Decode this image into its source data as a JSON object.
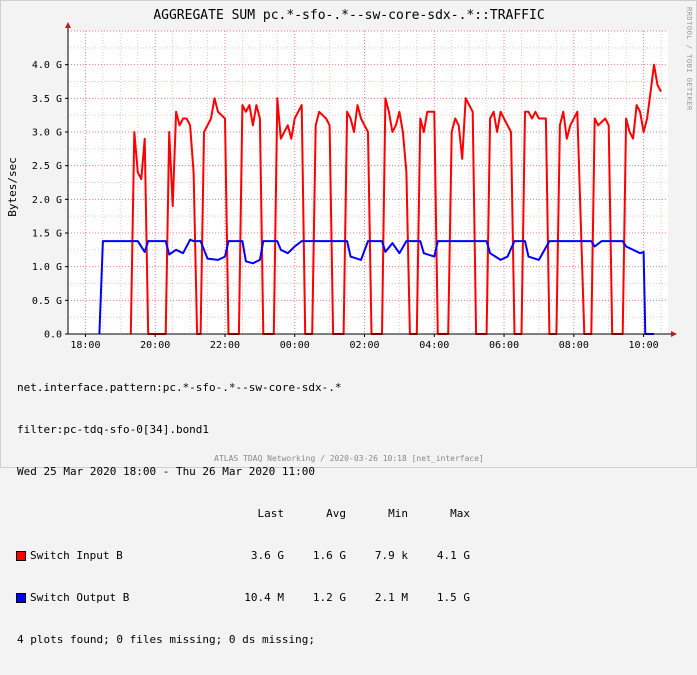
{
  "chart_data": {
    "type": "line",
    "title": "AGGREGATE SUM pc.*-sfo-.*--sw-core-sdx-.*::TRAFFIC",
    "ylabel": "Bytes/sec",
    "xlabel": "",
    "ylim": [
      0,
      4.5
    ],
    "xlim": [
      -0.5,
      16.7
    ],
    "y_ticks": [
      "0.0",
      "0.5 G",
      "1.0 G",
      "1.5 G",
      "2.0 G",
      "2.5 G",
      "3.0 G",
      "3.5 G",
      "4.0 G"
    ],
    "x_ticks": [
      "18:00",
      "20:00",
      "22:00",
      "00:00",
      "02:00",
      "04:00",
      "06:00",
      "08:00",
      "10:00"
    ],
    "grid": true,
    "series": [
      {
        "name": "Switch Input B",
        "color": "#ff0000",
        "units": "G bytes/sec; x = hours since 18:00",
        "points": [
          [
            1.3,
            0
          ],
          [
            1.4,
            3.0
          ],
          [
            1.5,
            2.4
          ],
          [
            1.6,
            2.3
          ],
          [
            1.7,
            2.9
          ],
          [
            1.8,
            0
          ],
          [
            2.3,
            0
          ],
          [
            2.4,
            3.0
          ],
          [
            2.5,
            1.9
          ],
          [
            2.6,
            3.3
          ],
          [
            2.7,
            3.1
          ],
          [
            2.8,
            3.2
          ],
          [
            2.9,
            3.2
          ],
          [
            3.0,
            3.1
          ],
          [
            3.1,
            2.4
          ],
          [
            3.2,
            0
          ],
          [
            3.3,
            0
          ],
          [
            3.4,
            3.0
          ],
          [
            3.5,
            3.1
          ],
          [
            3.6,
            3.2
          ],
          [
            3.7,
            3.5
          ],
          [
            3.8,
            3.3
          ],
          [
            4.0,
            3.2
          ],
          [
            4.1,
            0
          ],
          [
            4.4,
            0
          ],
          [
            4.5,
            3.4
          ],
          [
            4.6,
            3.3
          ],
          [
            4.7,
            3.4
          ],
          [
            4.8,
            3.1
          ],
          [
            4.9,
            3.4
          ],
          [
            5.0,
            3.2
          ],
          [
            5.1,
            0
          ],
          [
            5.4,
            0
          ],
          [
            5.5,
            3.5
          ],
          [
            5.6,
            2.9
          ],
          [
            5.7,
            3.0
          ],
          [
            5.8,
            3.1
          ],
          [
            5.9,
            2.9
          ],
          [
            6.0,
            3.2
          ],
          [
            6.1,
            3.3
          ],
          [
            6.2,
            3.4
          ],
          [
            6.3,
            0
          ],
          [
            6.5,
            0
          ],
          [
            6.6,
            3.1
          ],
          [
            6.7,
            3.3
          ],
          [
            6.9,
            3.2
          ],
          [
            7.0,
            3.1
          ],
          [
            7.1,
            0
          ],
          [
            7.4,
            0
          ],
          [
            7.5,
            3.3
          ],
          [
            7.6,
            3.2
          ],
          [
            7.7,
            3.0
          ],
          [
            7.8,
            3.4
          ],
          [
            7.9,
            3.2
          ],
          [
            8.1,
            3.0
          ],
          [
            8.2,
            0
          ],
          [
            8.5,
            0
          ],
          [
            8.6,
            3.5
          ],
          [
            8.7,
            3.3
          ],
          [
            8.8,
            3.0
          ],
          [
            8.9,
            3.1
          ],
          [
            9.0,
            3.3
          ],
          [
            9.1,
            3.0
          ],
          [
            9.2,
            2.4
          ],
          [
            9.3,
            0
          ],
          [
            9.5,
            0
          ],
          [
            9.6,
            3.2
          ],
          [
            9.7,
            3.0
          ],
          [
            9.8,
            3.3
          ],
          [
            10.0,
            3.3
          ],
          [
            10.1,
            0
          ],
          [
            10.4,
            0
          ],
          [
            10.5,
            3.0
          ],
          [
            10.6,
            3.2
          ],
          [
            10.7,
            3.1
          ],
          [
            10.8,
            2.6
          ],
          [
            10.9,
            3.5
          ],
          [
            11.0,
            3.4
          ],
          [
            11.1,
            3.3
          ],
          [
            11.2,
            0
          ],
          [
            11.5,
            0
          ],
          [
            11.6,
            3.2
          ],
          [
            11.7,
            3.3
          ],
          [
            11.8,
            3.0
          ],
          [
            11.9,
            3.3
          ],
          [
            12.0,
            3.2
          ],
          [
            12.2,
            3.0
          ],
          [
            12.3,
            0
          ],
          [
            12.5,
            0
          ],
          [
            12.6,
            3.3
          ],
          [
            12.7,
            3.3
          ],
          [
            12.8,
            3.2
          ],
          [
            12.9,
            3.3
          ],
          [
            13.0,
            3.2
          ],
          [
            13.2,
            3.2
          ],
          [
            13.3,
            0
          ],
          [
            13.5,
            0
          ],
          [
            13.6,
            3.1
          ],
          [
            13.7,
            3.3
          ],
          [
            13.8,
            2.9
          ],
          [
            13.9,
            3.1
          ],
          [
            14.1,
            3.3
          ],
          [
            14.3,
            0
          ],
          [
            14.5,
            0
          ],
          [
            14.6,
            3.2
          ],
          [
            14.7,
            3.1
          ],
          [
            14.9,
            3.2
          ],
          [
            15.0,
            3.1
          ],
          [
            15.1,
            0
          ],
          [
            15.4,
            0
          ],
          [
            15.5,
            3.2
          ],
          [
            15.6,
            3.0
          ],
          [
            15.7,
            2.9
          ],
          [
            15.8,
            3.4
          ],
          [
            15.9,
            3.3
          ],
          [
            16.0,
            3.0
          ],
          [
            16.1,
            3.2
          ],
          [
            16.2,
            3.6
          ],
          [
            16.3,
            4.0
          ],
          [
            16.4,
            3.7
          ],
          [
            16.5,
            3.6
          ]
        ]
      },
      {
        "name": "Switch Output B",
        "color": "#0000ff",
        "units": "G bytes/sec; x = hours since 18:00",
        "points": [
          [
            0.4,
            0
          ],
          [
            0.5,
            1.38
          ],
          [
            1.0,
            1.38
          ],
          [
            1.5,
            1.38
          ],
          [
            1.7,
            1.22
          ],
          [
            1.8,
            1.38
          ],
          [
            2.3,
            1.38
          ],
          [
            2.4,
            1.18
          ],
          [
            2.6,
            1.25
          ],
          [
            2.8,
            1.2
          ],
          [
            3.0,
            1.4
          ],
          [
            3.1,
            1.38
          ],
          [
            3.3,
            1.38
          ],
          [
            3.5,
            1.12
          ],
          [
            3.8,
            1.1
          ],
          [
            4.0,
            1.15
          ],
          [
            4.1,
            1.38
          ],
          [
            4.5,
            1.38
          ],
          [
            4.6,
            1.08
          ],
          [
            4.8,
            1.05
          ],
          [
            5.0,
            1.1
          ],
          [
            5.1,
            1.38
          ],
          [
            5.5,
            1.38
          ],
          [
            5.6,
            1.25
          ],
          [
            5.8,
            1.2
          ],
          [
            6.0,
            1.3
          ],
          [
            6.2,
            1.38
          ],
          [
            7.0,
            1.38
          ],
          [
            7.2,
            1.38
          ],
          [
            7.5,
            1.38
          ],
          [
            7.6,
            1.15
          ],
          [
            7.9,
            1.1
          ],
          [
            8.1,
            1.38
          ],
          [
            8.5,
            1.38
          ],
          [
            8.6,
            1.22
          ],
          [
            8.8,
            1.35
          ],
          [
            9.0,
            1.2
          ],
          [
            9.2,
            1.38
          ],
          [
            9.6,
            1.38
          ],
          [
            9.7,
            1.2
          ],
          [
            10.0,
            1.15
          ],
          [
            10.1,
            1.38
          ],
          [
            10.5,
            1.38
          ],
          [
            11.0,
            1.38
          ],
          [
            11.5,
            1.38
          ],
          [
            11.6,
            1.2
          ],
          [
            11.9,
            1.1
          ],
          [
            12.1,
            1.15
          ],
          [
            12.3,
            1.38
          ],
          [
            12.6,
            1.38
          ],
          [
            12.7,
            1.15
          ],
          [
            13.0,
            1.1
          ],
          [
            13.3,
            1.38
          ],
          [
            14.5,
            1.38
          ],
          [
            14.6,
            1.3
          ],
          [
            14.8,
            1.38
          ],
          [
            15.4,
            1.38
          ],
          [
            15.5,
            1.3
          ],
          [
            15.7,
            1.25
          ],
          [
            15.9,
            1.2
          ],
          [
            16.0,
            1.22
          ],
          [
            16.05,
            0
          ],
          [
            16.3,
            0
          ]
        ]
      }
    ]
  },
  "info": {
    "pattern": "net.interface.pattern:pc.*-sfo-.*--sw-core-sdx-.*",
    "filter": "filter:pc-tdq-sfo-0[34].bond1",
    "range": "Wed 25 Mar 2020 18:00 - Thu 26 Mar 2020 11:00",
    "col_last": "Last",
    "col_avg": "Avg",
    "col_min": "Min",
    "col_max": "Max",
    "legend": [
      {
        "name": "Switch Input B",
        "color": "#ff0000",
        "last": "3.6 G",
        "avg": "1.6 G",
        "min": "7.9 k",
        "max": "4.1 G"
      },
      {
        "name": "Switch Output B",
        "color": "#0000ff",
        "last": "10.4 M",
        "avg": "1.2 G",
        "min": "2.1 M",
        "max": "1.5 G"
      }
    ],
    "status": "4 plots found; 0 files missing; 0 ds missing;"
  },
  "watermark": "RRDTOOL / TOBI OETIKER",
  "footer": "ATLAS TDAQ Networking / 2020-03-26 10:18 [net_interface]"
}
